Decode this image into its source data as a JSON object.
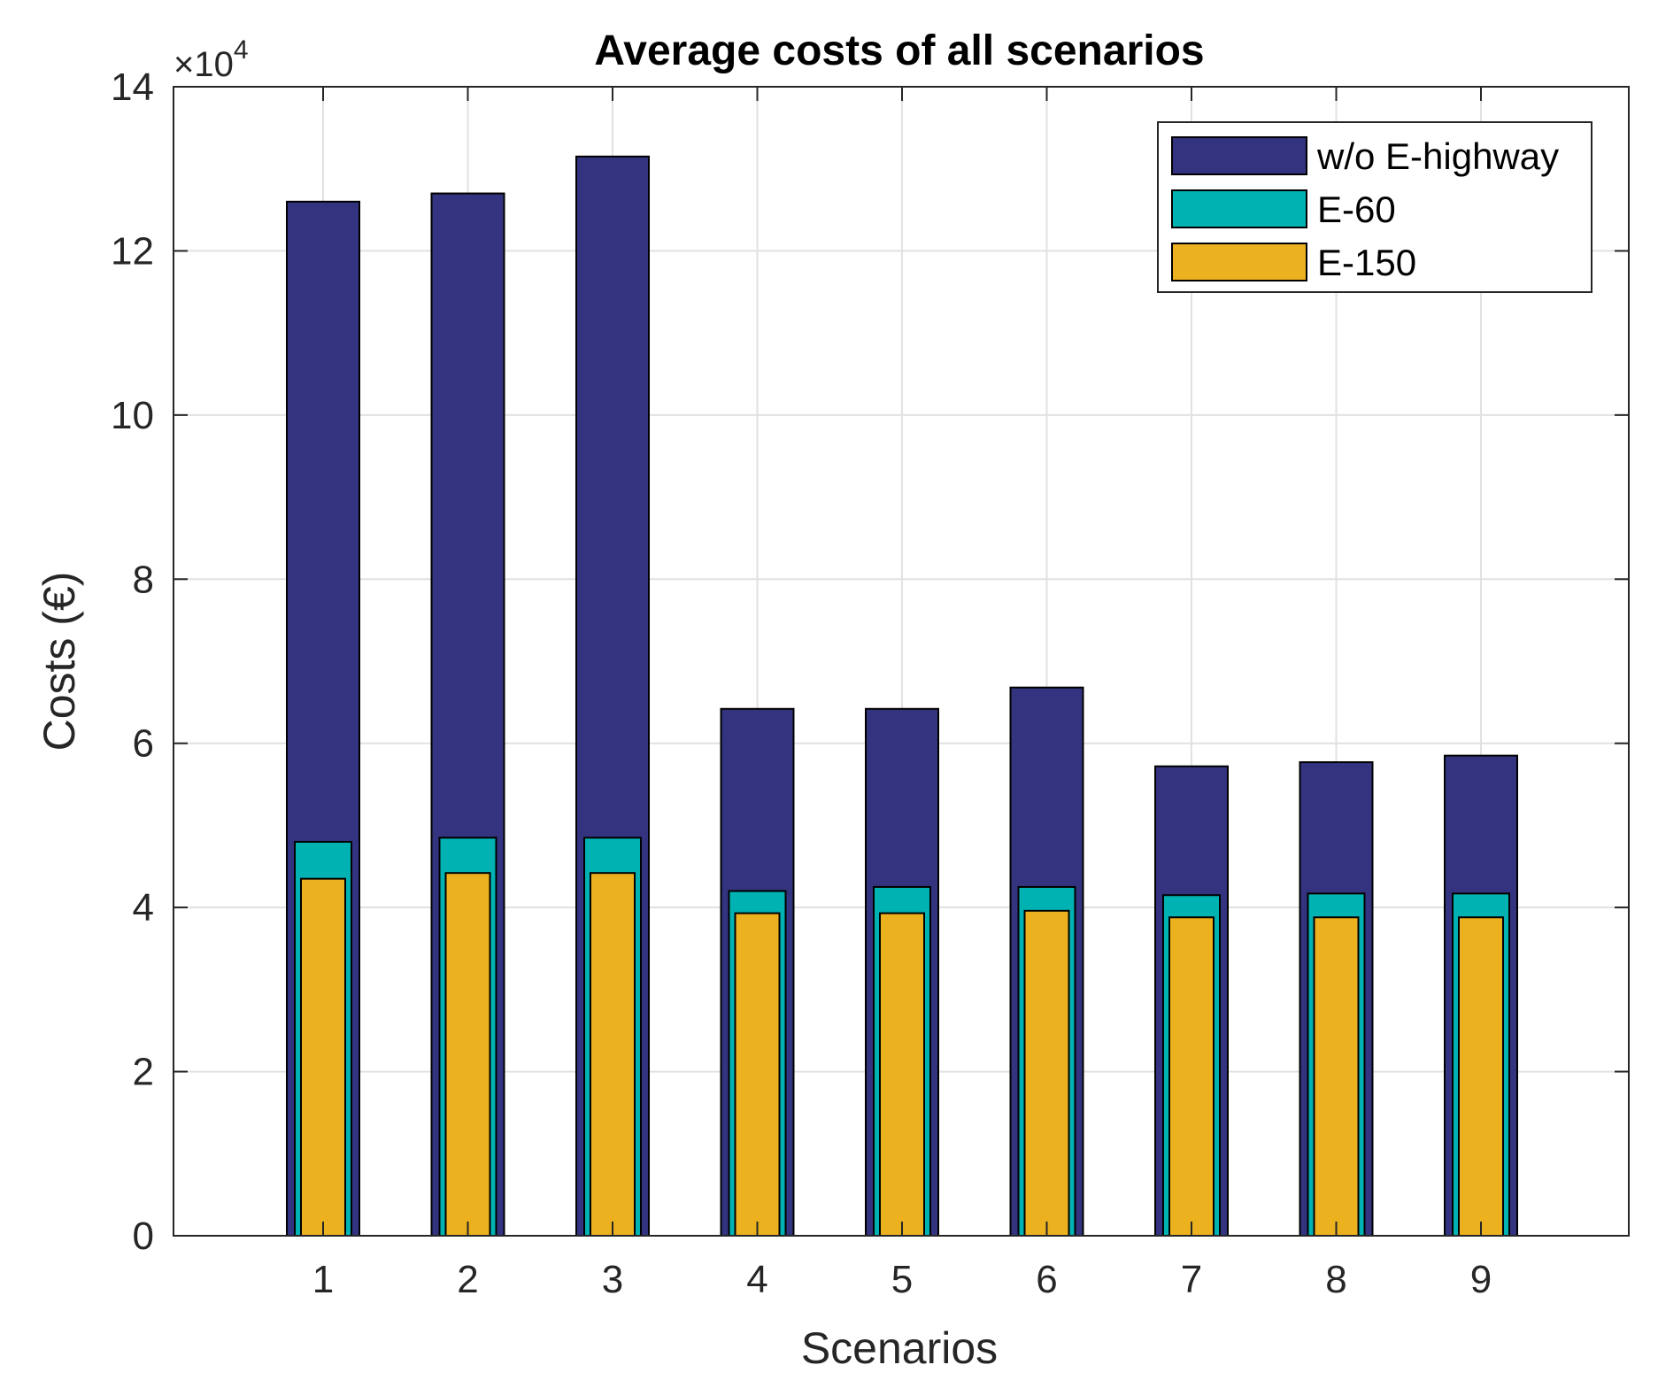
{
  "chart_data": {
    "type": "bar",
    "title": "Average costs of all scenarios",
    "xlabel": "Scenarios",
    "ylabel": "Costs (€)",
    "y_exponent": {
      "base_prefix": "×10",
      "exponent": "4"
    },
    "y_scale": 10000,
    "ylim": [
      0,
      14
    ],
    "yticks": [
      0,
      2,
      4,
      6,
      8,
      10,
      12,
      14
    ],
    "categories": [
      "1",
      "2",
      "3",
      "4",
      "5",
      "6",
      "7",
      "8",
      "9"
    ],
    "grid": true,
    "legend_location": "top-right",
    "series": [
      {
        "name": "w/o E-highway",
        "color": "#33337f",
        "values": [
          12.6,
          12.7,
          13.15,
          6.42,
          6.42,
          6.68,
          5.72,
          5.77,
          5.85
        ]
      },
      {
        "name": "E-60",
        "color": "#00b2b2",
        "values": [
          4.8,
          4.85,
          4.85,
          4.2,
          4.25,
          4.25,
          4.15,
          4.17,
          4.17
        ]
      },
      {
        "name": "E-150",
        "color": "#ebb11f",
        "values": [
          4.35,
          4.42,
          4.42,
          3.93,
          3.93,
          3.96,
          3.88,
          3.88,
          3.88
        ]
      }
    ]
  }
}
